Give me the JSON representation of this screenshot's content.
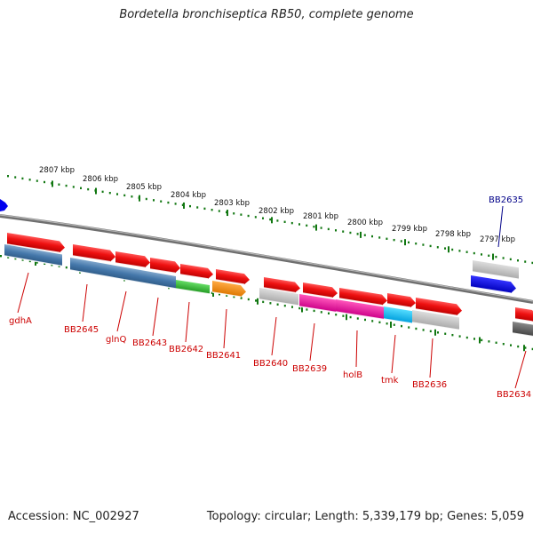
{
  "title": "Bordetella bronchiseptica RB50, complete genome",
  "footer": {
    "accession": "Accession: NC_002927",
    "summary": "Topology: circular; Length: 5,339,179 bp; Genes: 5,059"
  },
  "ticks": [
    "2807 kbp",
    "2806 kbp",
    "2805 kbp",
    "2804 kbp",
    "2803 kbp",
    "2802 kbp",
    "2801 kbp",
    "2800 kbp",
    "2799 kbp",
    "2798 kbp",
    "2797 kbp"
  ],
  "genes": [
    "gdhA",
    "BB2645",
    "glnQ",
    "BB2643",
    "BB2642",
    "BB2641",
    "BB2640",
    "BB2639",
    "holB",
    "tmk",
    "BB2636",
    "BB2635",
    "BB2634"
  ],
  "colors": {
    "forward": "#ee1111",
    "label_red": "#cc0000",
    "label_blue": "#000088",
    "steel_blue": "#4477aa",
    "green": "#33bb33",
    "orange": "#ff8800",
    "gray": "#bbbbbb",
    "magenta": "#ee1199",
    "cyan": "#11bbee",
    "blue": "#0000ee",
    "dark_gray": "#555555",
    "backbone": "#888888",
    "tick_green": "#117711"
  }
}
